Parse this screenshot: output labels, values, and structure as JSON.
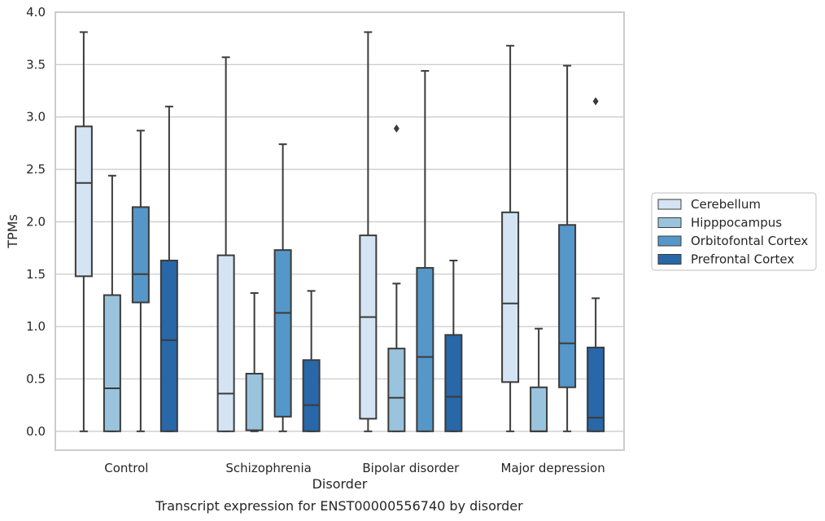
{
  "chart_data": {
    "type": "boxplot",
    "caption": "Transcript expression for ENST00000556740 by disorder",
    "xlabel": "Disorder",
    "ylabel": "TPMs",
    "ylim": [
      -0.18,
      4.0
    ],
    "yticks": [
      0.0,
      0.5,
      1.0,
      1.5,
      2.0,
      2.5,
      3.0,
      3.5,
      4.0
    ],
    "ytick_labels": [
      "0.0",
      "0.5",
      "1.0",
      "1.5",
      "2.0",
      "2.5",
      "3.0",
      "3.5",
      "4.0"
    ],
    "grid": true,
    "legend_position": "right, outside plot",
    "categories": [
      "Control",
      "Schizophrenia",
      "Bipolar disorder",
      "Major depression"
    ],
    "series": [
      {
        "name": "Cerebellum",
        "color": "#d4e4f2",
        "boxes": [
          {
            "whislo": 0.0,
            "q1": 1.48,
            "med": 2.37,
            "q3": 2.91,
            "whishi": 3.81,
            "fliers": []
          },
          {
            "whislo": 0.0,
            "q1": 0.0,
            "med": 0.36,
            "q3": 1.68,
            "whishi": 3.57,
            "fliers": []
          },
          {
            "whislo": 0.0,
            "q1": 0.12,
            "med": 1.09,
            "q3": 1.87,
            "whishi": 3.81,
            "fliers": []
          },
          {
            "whislo": 0.0,
            "q1": 0.47,
            "med": 1.22,
            "q3": 2.09,
            "whishi": 3.68,
            "fliers": []
          }
        ]
      },
      {
        "name": "Hipppocampus",
        "color": "#9ac4dd",
        "boxes": [
          {
            "whislo": 0.0,
            "q1": 0.0,
            "med": 0.41,
            "q3": 1.3,
            "whishi": 2.44,
            "fliers": []
          },
          {
            "whislo": 0.0,
            "q1": 0.01,
            "med": 0.01,
            "q3": 0.55,
            "whishi": 1.32,
            "fliers": []
          },
          {
            "whislo": 0.0,
            "q1": 0.0,
            "med": 0.32,
            "q3": 0.79,
            "whishi": 1.41,
            "fliers": [
              2.89
            ]
          },
          {
            "whislo": 0.0,
            "q1": 0.0,
            "med": 0.0,
            "q3": 0.42,
            "whishi": 0.98,
            "fliers": []
          }
        ]
      },
      {
        "name": "Orbitofontal Cortex",
        "color": "#5597c8",
        "boxes": [
          {
            "whislo": 0.0,
            "q1": 1.23,
            "med": 1.5,
            "q3": 2.14,
            "whishi": 2.87,
            "fliers": []
          },
          {
            "whislo": 0.0,
            "q1": 0.14,
            "med": 1.13,
            "q3": 1.73,
            "whishi": 2.74,
            "fliers": []
          },
          {
            "whislo": 0.0,
            "q1": 0.0,
            "med": 0.71,
            "q3": 1.56,
            "whishi": 3.44,
            "fliers": []
          },
          {
            "whislo": 0.0,
            "q1": 0.42,
            "med": 0.84,
            "q3": 1.97,
            "whishi": 3.49,
            "fliers": []
          }
        ]
      },
      {
        "name": "Prefrontal Cortex",
        "color": "#2867a8",
        "boxes": [
          {
            "whislo": 0.0,
            "q1": 0.0,
            "med": 0.87,
            "q3": 1.63,
            "whishi": 3.1,
            "fliers": []
          },
          {
            "whislo": 0.0,
            "q1": 0.0,
            "med": 0.25,
            "q3": 0.68,
            "whishi": 1.34,
            "fliers": []
          },
          {
            "whislo": 0.0,
            "q1": 0.0,
            "med": 0.33,
            "q3": 0.92,
            "whishi": 1.63,
            "fliers": []
          },
          {
            "whislo": 0.0,
            "q1": 0.0,
            "med": 0.13,
            "q3": 0.8,
            "whishi": 1.27,
            "fliers": [
              3.15
            ]
          }
        ]
      }
    ]
  }
}
